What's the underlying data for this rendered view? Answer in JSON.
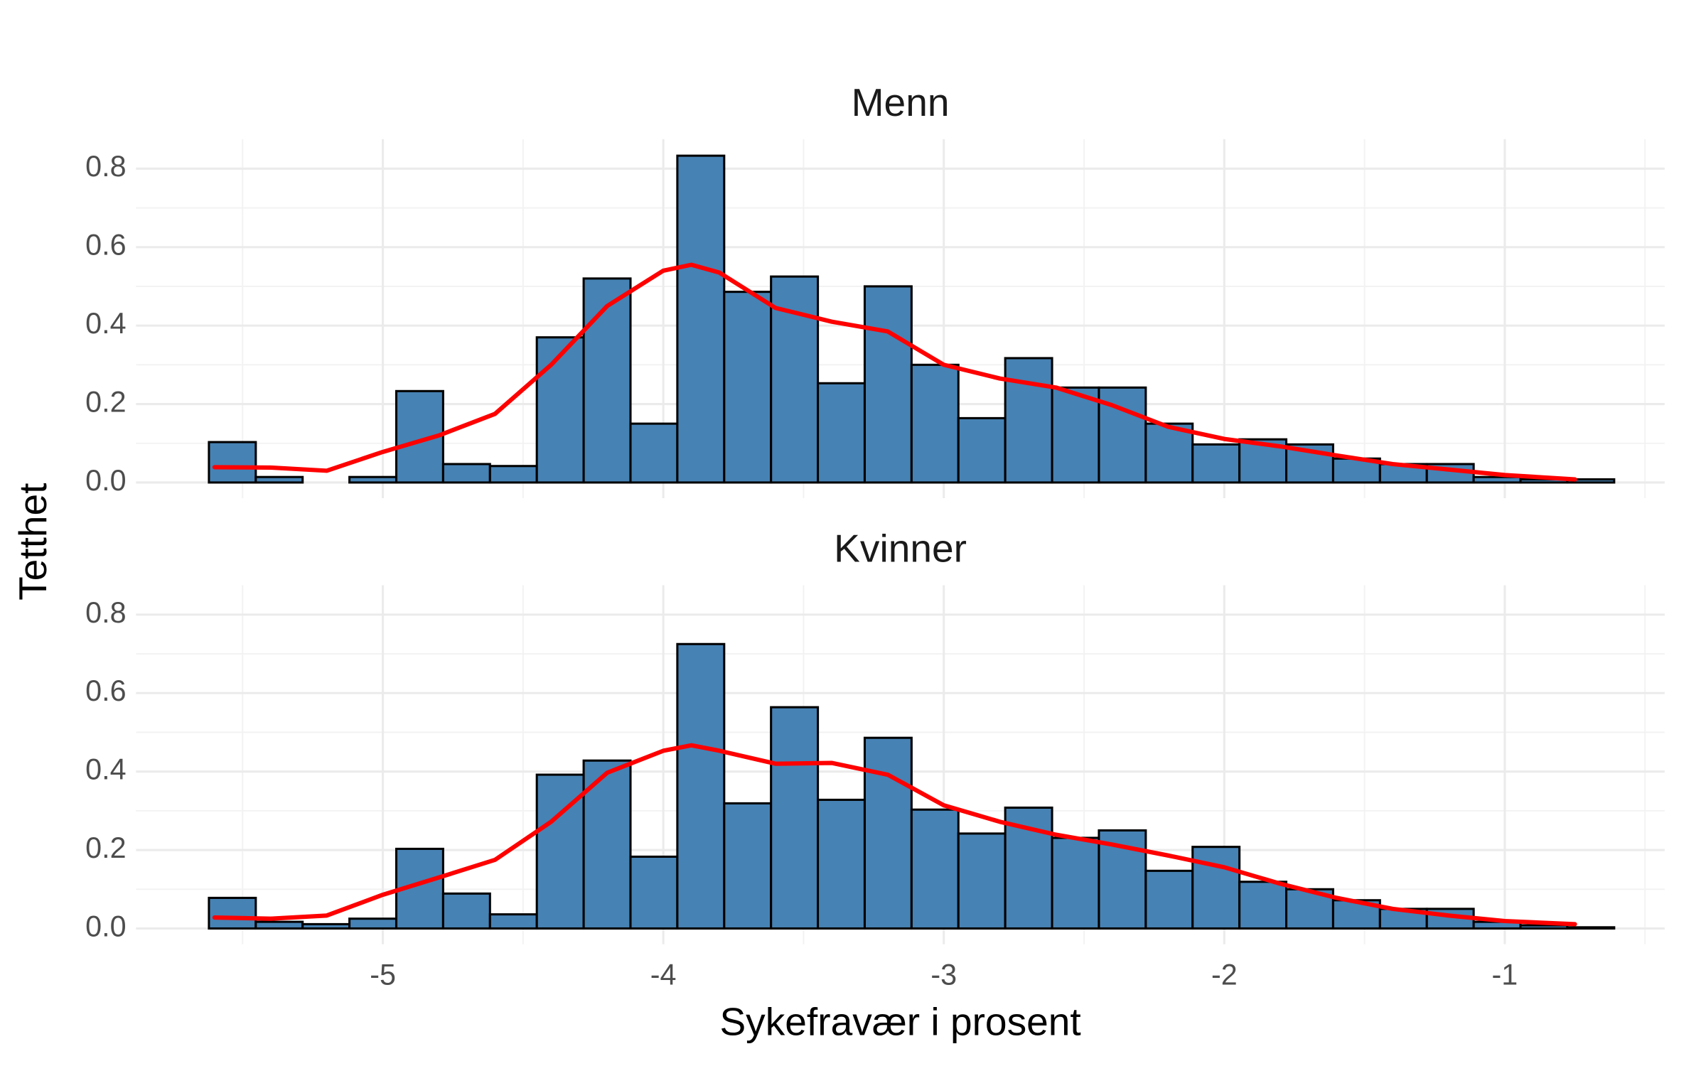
{
  "chart_data": [
    {
      "type": "histogram",
      "title": "Menn",
      "ylabel": "Tetthet",
      "bins": [
        -5.62,
        -5.453,
        -5.286,
        -5.119,
        -4.952,
        -4.785,
        -4.618,
        -4.451,
        -4.284,
        -4.117,
        -3.95,
        -3.783,
        -3.616,
        -3.449,
        -3.282,
        -3.115,
        -2.948,
        -2.781,
        -2.614,
        -2.447,
        -2.28,
        -2.113,
        -1.946,
        -1.779,
        -1.612,
        -1.445,
        -1.278,
        -1.111,
        -0.944,
        -0.777,
        -0.61
      ],
      "values": [
        0.103,
        0.014,
        0,
        0.014,
        0.233,
        0.047,
        0.042,
        0.37,
        0.52,
        0.15,
        0.833,
        0.486,
        0.525,
        0.253,
        0.5,
        0.3,
        0.164,
        0.317,
        0.242,
        0.242,
        0.15,
        0.097,
        0.11,
        0.097,
        0.061,
        0.047,
        0.047,
        0.014,
        0.008,
        0.008
      ],
      "color": "#4682b4",
      "edgecolor": "#000000",
      "density": {
        "color": "#ff0000",
        "x": [
          -5.6,
          -5.4,
          -5.2,
          -5.0,
          -4.8,
          -4.6,
          -4.4,
          -4.2,
          -4.0,
          -3.9,
          -3.8,
          -3.6,
          -3.4,
          -3.2,
          -3.0,
          -2.8,
          -2.6,
          -2.4,
          -2.2,
          -2.0,
          -1.8,
          -1.6,
          -1.4,
          -1.2,
          -1.0,
          -0.75
        ],
        "values": [
          0.039,
          0.038,
          0.03,
          0.078,
          0.12,
          0.175,
          0.3,
          0.45,
          0.54,
          0.555,
          0.535,
          0.445,
          0.41,
          0.385,
          0.3,
          0.265,
          0.242,
          0.197,
          0.142,
          0.111,
          0.092,
          0.069,
          0.047,
          0.033,
          0.019,
          0.008
        ]
      },
      "xlim": [
        -5.88,
        -0.43
      ],
      "xticks": [
        -5,
        -4,
        -3,
        -2,
        -1
      ],
      "ylim": [
        -0.04,
        0.875
      ],
      "yticks": [
        {
          "value": 0,
          "label": "0.0"
        },
        {
          "value": 0.2,
          "label": "0.2"
        },
        {
          "value": 0.4,
          "label": "0.4"
        },
        {
          "value": 0.6,
          "label": "0.6"
        },
        {
          "value": 0.8,
          "label": "0.8"
        }
      ],
      "grid": true
    },
    {
      "type": "histogram",
      "title": "Kvinner",
      "xlabel": "Sykefravær i prosent",
      "bins": [
        -5.62,
        -5.453,
        -5.286,
        -5.119,
        -4.952,
        -4.785,
        -4.618,
        -4.451,
        -4.284,
        -4.117,
        -3.95,
        -3.783,
        -3.616,
        -3.449,
        -3.282,
        -3.115,
        -2.948,
        -2.781,
        -2.614,
        -2.447,
        -2.28,
        -2.113,
        -1.946,
        -1.779,
        -1.612,
        -1.445,
        -1.278,
        -1.111,
        -0.944,
        -0.777,
        -0.61
      ],
      "values": [
        0.078,
        0.017,
        0.011,
        0.025,
        0.203,
        0.089,
        0.036,
        0.392,
        0.428,
        0.183,
        0.725,
        0.319,
        0.564,
        0.328,
        0.486,
        0.303,
        0.242,
        0.308,
        0.231,
        0.25,
        0.147,
        0.208,
        0.119,
        0.1,
        0.072,
        0.05,
        0.05,
        0.017,
        0.008,
        0.003
      ],
      "color": "#4682b4",
      "edgecolor": "#000000",
      "density": {
        "color": "#ff0000",
        "x": [
          -5.6,
          -5.4,
          -5.2,
          -5.0,
          -4.8,
          -4.6,
          -4.4,
          -4.2,
          -4.0,
          -3.9,
          -3.8,
          -3.6,
          -3.4,
          -3.2,
          -3.0,
          -2.8,
          -2.6,
          -2.4,
          -2.2,
          -2.0,
          -1.8,
          -1.6,
          -1.4,
          -1.2,
          -1.0,
          -0.75
        ],
        "values": [
          0.028,
          0.025,
          0.033,
          0.086,
          0.13,
          0.175,
          0.272,
          0.397,
          0.453,
          0.467,
          0.453,
          0.42,
          0.422,
          0.392,
          0.314,
          0.272,
          0.239,
          0.214,
          0.186,
          0.156,
          0.114,
          0.078,
          0.05,
          0.033,
          0.019,
          0.011
        ]
      },
      "xlim": [
        -5.88,
        -0.43
      ],
      "xticks": [
        -5,
        -4,
        -3,
        -2,
        -1
      ],
      "ylim": [
        -0.04,
        0.875
      ],
      "yticks": [
        {
          "value": 0,
          "label": "0.0"
        },
        {
          "value": 0.2,
          "label": "0.2"
        },
        {
          "value": 0.4,
          "label": "0.4"
        },
        {
          "value": 0.6,
          "label": "0.6"
        },
        {
          "value": 0.8,
          "label": "0.8"
        }
      ],
      "grid": true
    }
  ]
}
